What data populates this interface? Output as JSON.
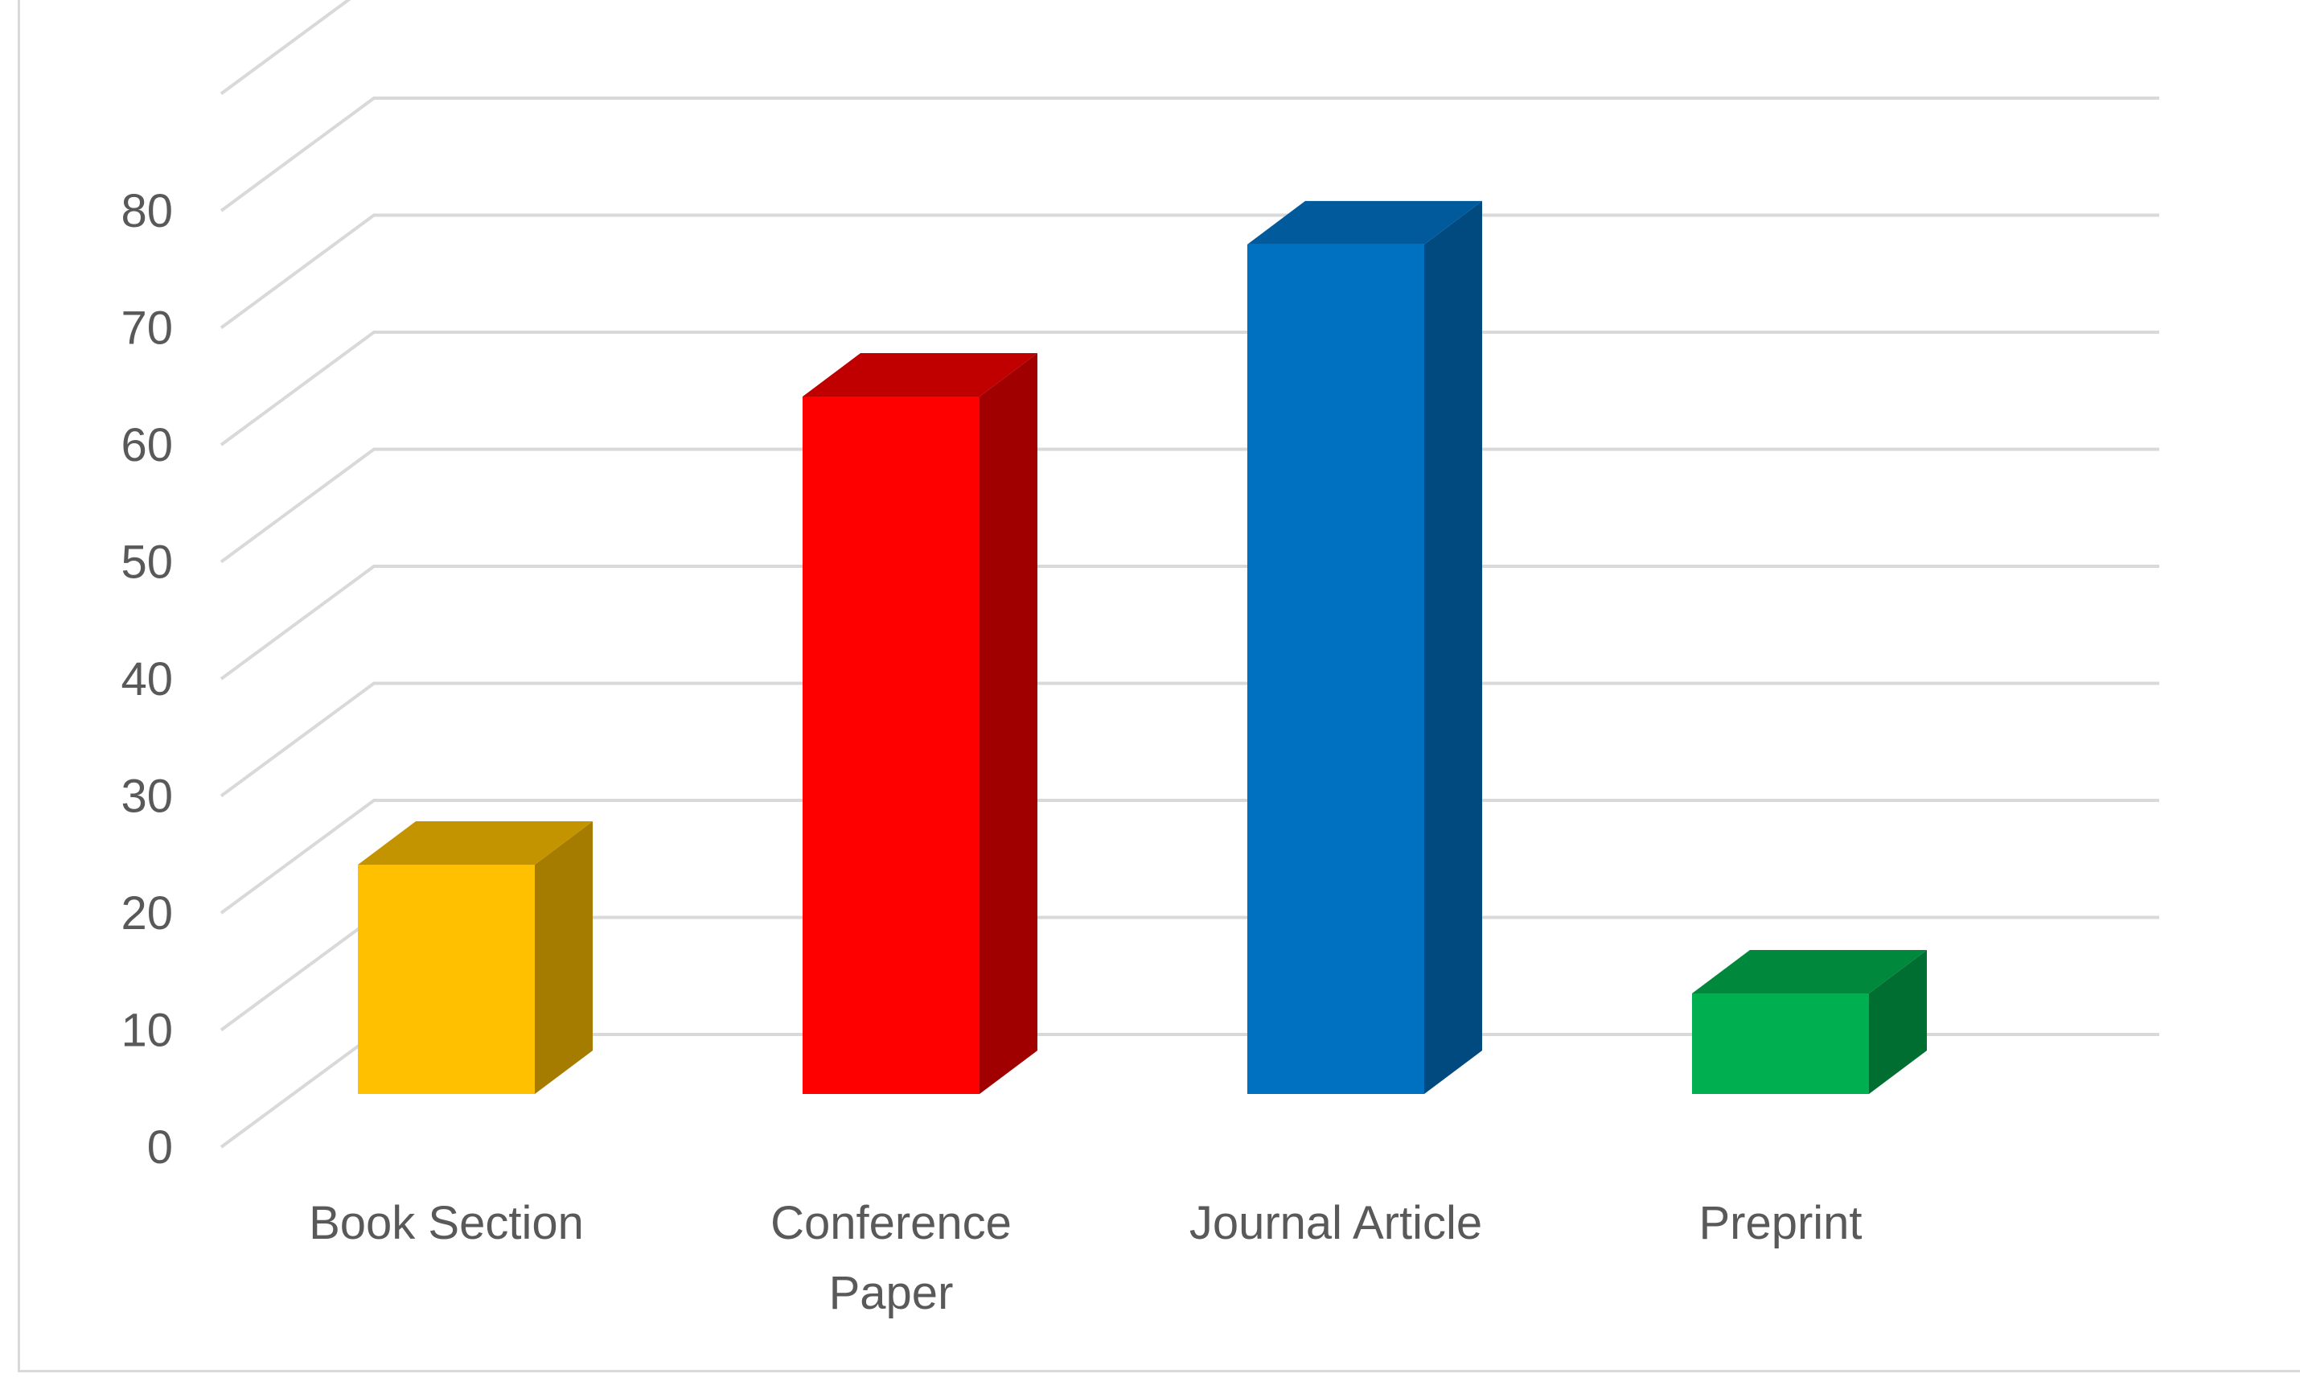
{
  "chart_data": {
    "type": "bar",
    "style": "3d-column",
    "title": "",
    "xlabel": "",
    "ylabel": "",
    "categories": [
      [
        "Book Section"
      ],
      [
        "Conference",
        "Paper"
      ],
      [
        "Journal Article"
      ],
      [
        "Preprint"
      ]
    ],
    "values": [
      20,
      60,
      73,
      9
    ],
    "ylim": [
      0,
      90
    ],
    "yticks": [
      0,
      10,
      20,
      30,
      40,
      50,
      60,
      70,
      80
    ],
    "grid": true,
    "legend": "none",
    "colors": [
      {
        "front": "#ffc000",
        "top": "#c49400",
        "side": "#a57c00"
      },
      {
        "front": "#ff0000",
        "top": "#c00000",
        "side": "#a00000"
      },
      {
        "front": "#0070c0",
        "top": "#005a9c",
        "side": "#004a80"
      },
      {
        "front": "#00b050",
        "top": "#00883d",
        "side": "#006e31"
      }
    ],
    "gridColor": "#d9d9d9",
    "textColor": "#595959"
  }
}
